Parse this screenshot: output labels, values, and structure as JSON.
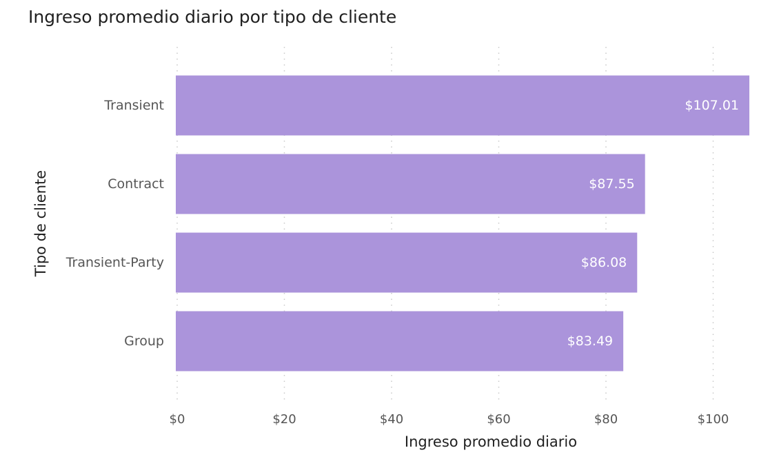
{
  "chart_data": {
    "type": "bar",
    "orientation": "horizontal",
    "title": "Ingreso promedio diario por tipo de cliente",
    "xlabel": "Ingreso promedio diario",
    "ylabel": "Tipo de cliente",
    "categories": [
      "Transient",
      "Contract",
      "Transient-Party",
      "Group"
    ],
    "values": [
      107.01,
      87.55,
      86.08,
      83.49
    ],
    "data_labels": [
      "$107.01",
      "$87.55",
      "$86.08",
      "$83.49"
    ],
    "xlim": [
      0,
      107.01
    ],
    "x_ticks": [
      0,
      20,
      40,
      60,
      80,
      100
    ],
    "x_tick_labels": [
      "$0",
      "$20",
      "$40",
      "$60",
      "$80",
      "$100"
    ],
    "grid": "vertical dotted",
    "legend": "none",
    "bar_color": "#ab94db",
    "label_color": "#ffffff"
  }
}
